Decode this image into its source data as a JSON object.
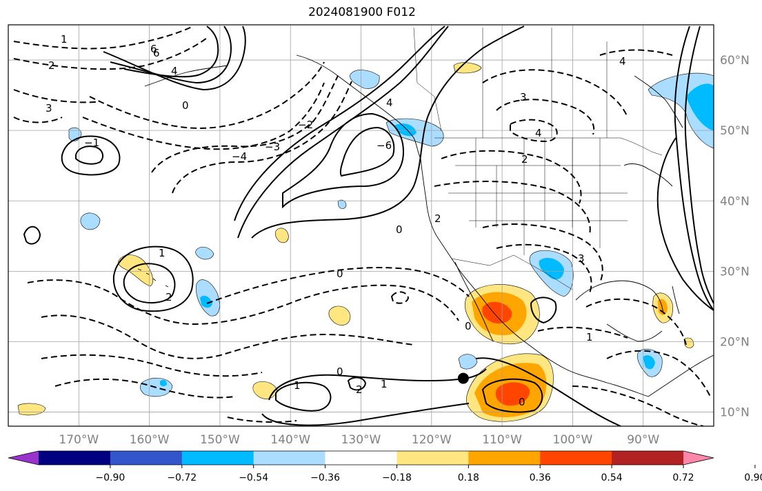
{
  "title": "2024081900 F012",
  "map": {
    "lon_range": [
      -180,
      -80
    ],
    "lat_range": [
      8,
      65
    ],
    "lon_ticks": [
      {
        "value": -170,
        "label": "170°W"
      },
      {
        "value": -160,
        "label": "160°W"
      },
      {
        "value": -150,
        "label": "150°W"
      },
      {
        "value": -140,
        "label": "140°W"
      },
      {
        "value": -130,
        "label": "130°W"
      },
      {
        "value": -120,
        "label": "120°W"
      },
      {
        "value": -110,
        "label": "110°W"
      },
      {
        "value": -100,
        "label": "100°W"
      },
      {
        "value": -90,
        "label": "90°W"
      }
    ],
    "lat_ticks": [
      {
        "value": 60,
        "label": "60°N"
      },
      {
        "value": 50,
        "label": "50°N"
      },
      {
        "value": 40,
        "label": "40°N"
      },
      {
        "value": 30,
        "label": "30°N"
      },
      {
        "value": 20,
        "label": "20°N"
      },
      {
        "value": 10,
        "label": "10°N"
      }
    ],
    "grid": true,
    "marker": {
      "lon": -115.5,
      "lat": 14.8
    }
  },
  "colorbar": {
    "colors": [
      "#9933cc",
      "#000080",
      "#3355cc",
      "#00bbff",
      "#aaddff",
      "#ffffff",
      "#ffe680",
      "#ffa500",
      "#ff4500",
      "#b22222",
      "#ff88aa"
    ],
    "tick_labels": [
      "−0.90",
      "−0.72",
      "−0.54",
      "−0.36",
      "−0.18",
      "0.18",
      "0.36",
      "0.54",
      "0.72",
      "0.90"
    ],
    "extend": "both"
  },
  "contour_labels": [
    "1",
    "2",
    "3",
    "4",
    "6",
    "0",
    "−1",
    "−2",
    "−3",
    "−4",
    "−6",
    "0",
    "1",
    "2",
    "1",
    "0",
    "2",
    "1",
    "0",
    "2",
    "1",
    "0",
    "4",
    "3",
    "4",
    "2",
    "3",
    "0",
    "6",
    "4"
  ]
}
